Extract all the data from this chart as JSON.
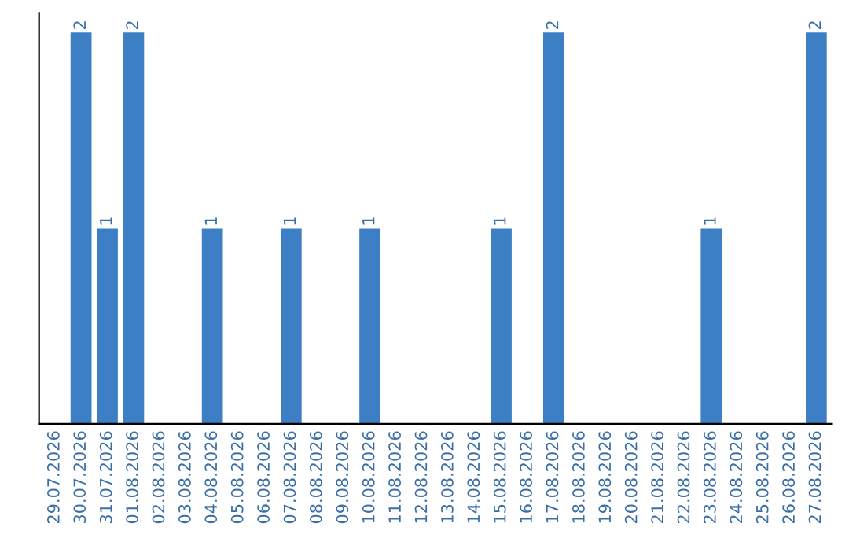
{
  "chart_data": {
    "type": "bar",
    "categories": [
      "29.07.2026",
      "30.07.2026",
      "31.07.2026",
      "01.08.2026",
      "02.08.2026",
      "03.08.2026",
      "04.08.2026",
      "05.08.2026",
      "06.08.2026",
      "07.08.2026",
      "08.08.2026",
      "09.08.2026",
      "10.08.2026",
      "11.08.2026",
      "12.08.2026",
      "13.08.2026",
      "14.08.2026",
      "15.08.2026",
      "16.08.2026",
      "17.08.2026",
      "18.08.2026",
      "19.08.2026",
      "20.08.2026",
      "21.08.2026",
      "22.08.2026",
      "23.08.2026",
      "24.08.2026",
      "25.08.2026",
      "26.08.2026",
      "27.08.2026"
    ],
    "values": [
      0,
      2,
      1,
      2,
      0,
      0,
      1,
      0,
      0,
      1,
      0,
      0,
      1,
      0,
      0,
      0,
      0,
      1,
      0,
      2,
      0,
      0,
      0,
      0,
      0,
      1,
      0,
      0,
      0,
      2
    ],
    "value_labels": [
      null,
      "2",
      "1",
      "2",
      null,
      null,
      "1",
      null,
      null,
      "1",
      null,
      null,
      "1",
      null,
      null,
      null,
      null,
      "1",
      null,
      "2",
      null,
      null,
      null,
      null,
      null,
      "1",
      null,
      null,
      null,
      "2"
    ],
    "color": "#3d7fc4",
    "ylim": [
      0,
      2.1
    ],
    "tick_labels": "x",
    "grid": false,
    "legend": false
  }
}
